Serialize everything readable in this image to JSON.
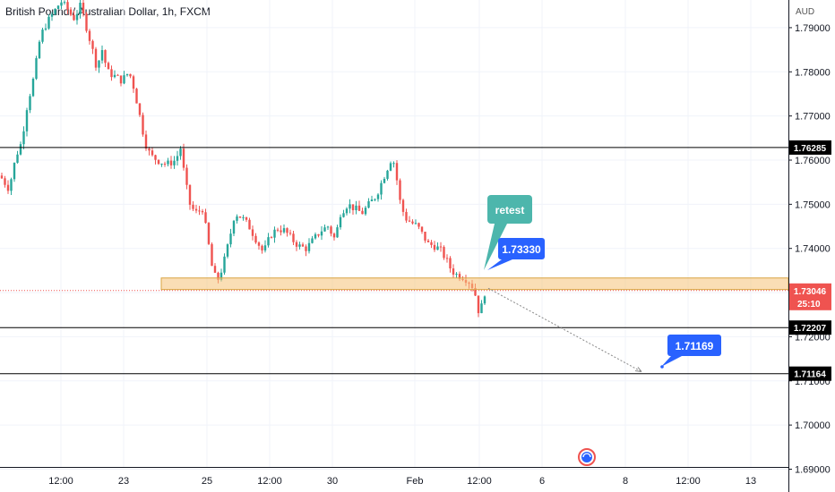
{
  "header": {
    "title": "British Pound / Australian Dollar, 1h, FXCM"
  },
  "chart_data": {
    "type": "candlestick",
    "symbol": "GBPAUD",
    "timeframe": "1h",
    "unit": "AUD",
    "ylim": [
      1.688,
      1.795
    ],
    "y_ticks": [
      1.69,
      1.7,
      1.71,
      1.72,
      1.73,
      1.74,
      1.75,
      1.76,
      1.77,
      1.78,
      1.79
    ],
    "y_tick_labels": [
      "1.69000",
      "1.70000",
      "1.71000",
      "1.72000",
      "1.73000",
      "1.74000",
      "1.75000",
      "1.76000",
      "1.77000",
      "1.78000",
      "1.79000"
    ],
    "x_ticks": [
      {
        "label": "12:00",
        "pos": 68
      },
      {
        "label": "23",
        "pos": 138
      },
      {
        "label": "25",
        "pos": 231
      },
      {
        "label": "12:00",
        "pos": 301
      },
      {
        "label": "30",
        "pos": 371
      },
      {
        "label": "Feb",
        "pos": 463
      },
      {
        "label": "12:00",
        "pos": 535
      },
      {
        "label": "6",
        "pos": 605
      },
      {
        "label": "8",
        "pos": 698
      },
      {
        "label": "12:00",
        "pos": 768
      },
      {
        "label": "13",
        "pos": 838
      }
    ],
    "price_path": [
      [
        0,
        1.7565
      ],
      [
        10,
        1.7535
      ],
      [
        18,
        1.761
      ],
      [
        24,
        1.764
      ],
      [
        30,
        1.772
      ],
      [
        38,
        1.779
      ],
      [
        45,
        1.788
      ],
      [
        52,
        1.791
      ],
      [
        60,
        1.7935
      ],
      [
        68,
        1.796
      ],
      [
        76,
        1.794
      ],
      [
        82,
        1.792
      ],
      [
        90,
        1.795
      ],
      [
        96,
        1.7905
      ],
      [
        102,
        1.786
      ],
      [
        108,
        1.781
      ],
      [
        114,
        1.785
      ],
      [
        120,
        1.78
      ],
      [
        128,
        1.779
      ],
      [
        136,
        1.778
      ],
      [
        144,
        1.78
      ],
      [
        150,
        1.776
      ],
      [
        156,
        1.77
      ],
      [
        162,
        1.764
      ],
      [
        168,
        1.761
      ],
      [
        176,
        1.76
      ],
      [
        186,
        1.759
      ],
      [
        196,
        1.76
      ],
      [
        202,
        1.763
      ],
      [
        206,
        1.756
      ],
      [
        212,
        1.75
      ],
      [
        218,
        1.748
      ],
      [
        226,
        1.749
      ],
      [
        232,
        1.742
      ],
      [
        238,
        1.734
      ],
      [
        244,
        1.733
      ],
      [
        250,
        1.737
      ],
      [
        256,
        1.742
      ],
      [
        262,
        1.748
      ],
      [
        270,
        1.747
      ],
      [
        278,
        1.745
      ],
      [
        286,
        1.742
      ],
      [
        294,
        1.739
      ],
      [
        302,
        1.743
      ],
      [
        310,
        1.7445
      ],
      [
        318,
        1.744
      ],
      [
        326,
        1.742
      ],
      [
        334,
        1.7405
      ],
      [
        342,
        1.74
      ],
      [
        350,
        1.742
      ],
      [
        358,
        1.744
      ],
      [
        366,
        1.745
      ],
      [
        374,
        1.742
      ],
      [
        380,
        1.748
      ],
      [
        388,
        1.75
      ],
      [
        396,
        1.749
      ],
      [
        404,
        1.748
      ],
      [
        412,
        1.75
      ],
      [
        420,
        1.752
      ],
      [
        428,
        1.756
      ],
      [
        434,
        1.759
      ],
      [
        438,
        1.761
      ],
      [
        442,
        1.757
      ],
      [
        446,
        1.751
      ],
      [
        452,
        1.747
      ],
      [
        458,
        1.746
      ],
      [
        466,
        1.745
      ],
      [
        472,
        1.743
      ],
      [
        478,
        1.741
      ],
      [
        486,
        1.7405
      ],
      [
        492,
        1.7395
      ],
      [
        498,
        1.7375
      ],
      [
        504,
        1.735
      ],
      [
        510,
        1.734
      ],
      [
        518,
        1.7335
      ],
      [
        526,
        1.732
      ],
      [
        530,
        1.73
      ],
      [
        534,
        1.726
      ],
      [
        538,
        1.727
      ],
      [
        541,
        1.73
      ],
      [
        544,
        1.7305
      ]
    ],
    "levels": [
      {
        "value": 1.76285,
        "label": "1.76285"
      },
      {
        "value": 1.72207,
        "label": "1.72207"
      },
      {
        "value": 1.71164,
        "label": "1.71164"
      }
    ],
    "zone": {
      "from": 1.7315,
      "to": 1.7325
    },
    "current_price": {
      "value": 1.73046,
      "label": "1.73046",
      "countdown": "25:10"
    },
    "annotations": [
      {
        "text": "retest"
      },
      {
        "text": "1.73330",
        "value": 1.7333
      },
      {
        "text": "1.71169",
        "value": 1.71169
      }
    ],
    "projection": {
      "from": 1.733,
      "to": 1.71169
    },
    "colors": {
      "up": "#26a69a",
      "down": "#ef5350",
      "zone": "#f5c278",
      "callout": "#2962ff",
      "retest": "#4db6ac"
    }
  }
}
